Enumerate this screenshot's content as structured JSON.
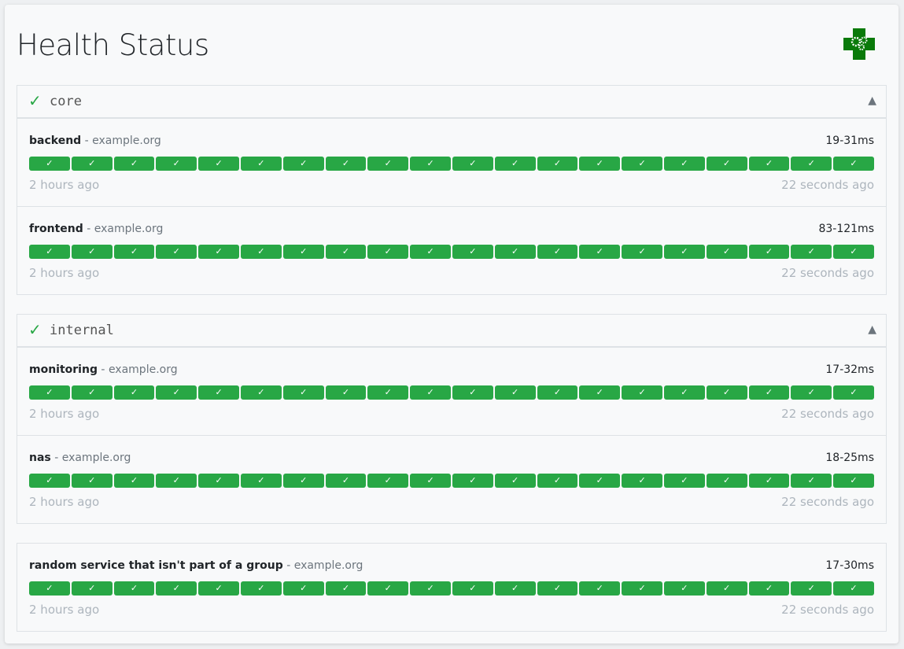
{
  "header": {
    "title": "Health Status",
    "logo": "health-cross-gears-logo"
  },
  "colors": {
    "success": "#28a745",
    "group_check": "#28a745",
    "muted": "#adb5bd"
  },
  "groups": [
    {
      "name": "core",
      "status_icon": "✓",
      "toggle_icon": "▲",
      "endpoints": [
        {
          "name": "backend",
          "separator": " - ",
          "hostname": "example.org",
          "response_time": "19-31ms",
          "oldest": "2 hours ago",
          "newest": "22 seconds ago",
          "results": [
            "success",
            "success",
            "success",
            "success",
            "success",
            "success",
            "success",
            "success",
            "success",
            "success",
            "success",
            "success",
            "success",
            "success",
            "success",
            "success",
            "success",
            "success",
            "success",
            "success"
          ]
        },
        {
          "name": "frontend",
          "separator": " - ",
          "hostname": "example.org",
          "response_time": "83-121ms",
          "oldest": "2 hours ago",
          "newest": "22 seconds ago",
          "results": [
            "success",
            "success",
            "success",
            "success",
            "success",
            "success",
            "success",
            "success",
            "success",
            "success",
            "success",
            "success",
            "success",
            "success",
            "success",
            "success",
            "success",
            "success",
            "success",
            "success"
          ]
        }
      ]
    },
    {
      "name": "internal",
      "status_icon": "✓",
      "toggle_icon": "▲",
      "endpoints": [
        {
          "name": "monitoring",
          "separator": " - ",
          "hostname": "example.org",
          "response_time": "17-32ms",
          "oldest": "2 hours ago",
          "newest": "22 seconds ago",
          "results": [
            "success",
            "success",
            "success",
            "success",
            "success",
            "success",
            "success",
            "success",
            "success",
            "success",
            "success",
            "success",
            "success",
            "success",
            "success",
            "success",
            "success",
            "success",
            "success",
            "success"
          ]
        },
        {
          "name": "nas",
          "separator": " - ",
          "hostname": "example.org",
          "response_time": "18-25ms",
          "oldest": "2 hours ago",
          "newest": "22 seconds ago",
          "results": [
            "success",
            "success",
            "success",
            "success",
            "success",
            "success",
            "success",
            "success",
            "success",
            "success",
            "success",
            "success",
            "success",
            "success",
            "success",
            "success",
            "success",
            "success",
            "success",
            "success"
          ]
        }
      ]
    },
    {
      "name": "",
      "endpoints": [
        {
          "name": "random service that isn't part of a group",
          "separator": " - ",
          "hostname": "example.org",
          "response_time": "17-30ms",
          "oldest": "2 hours ago",
          "newest": "22 seconds ago",
          "results": [
            "success",
            "success",
            "success",
            "success",
            "success",
            "success",
            "success",
            "success",
            "success",
            "success",
            "success",
            "success",
            "success",
            "success",
            "success",
            "success",
            "success",
            "success",
            "success",
            "success"
          ]
        }
      ]
    }
  ],
  "result_icon": "✓"
}
